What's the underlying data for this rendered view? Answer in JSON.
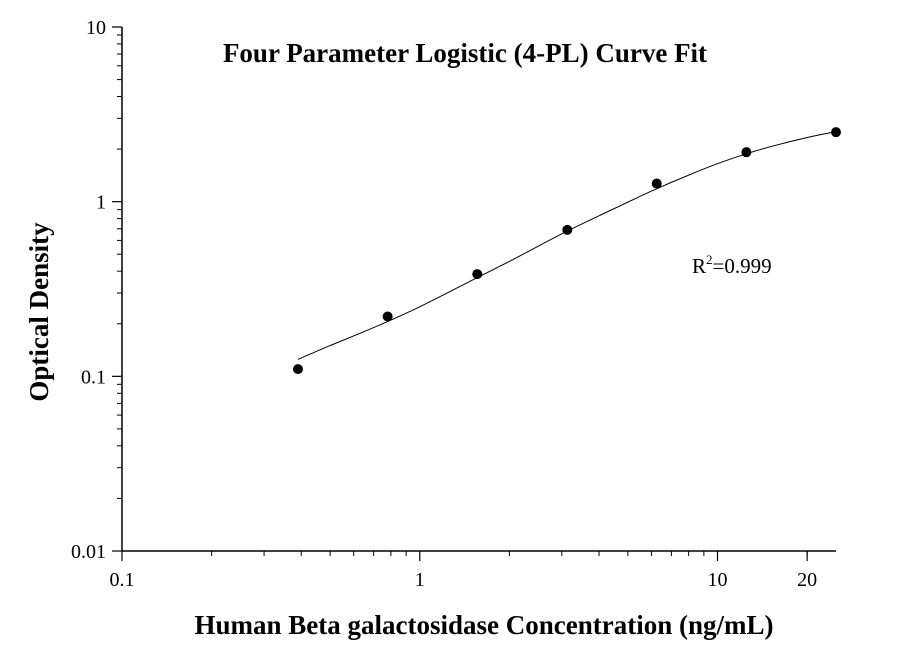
{
  "chart_data": {
    "type": "scatter",
    "title": "Four Parameter Logistic (4-PL) Curve Fit",
    "xlabel": "Human Beta galactosidase Concentration (ng/mL)",
    "ylabel": "Optical Density",
    "x_scale": "log",
    "y_scale": "log",
    "xlim": [
      0.1,
      25
    ],
    "ylim": [
      0.01,
      10
    ],
    "x_ticks": [
      {
        "value": 0.1,
        "label": "0.1"
      },
      {
        "value": 1,
        "label": "1"
      },
      {
        "value": 10,
        "label": "10"
      },
      {
        "value": 20,
        "label": "20"
      }
    ],
    "y_ticks": [
      {
        "value": 0.01,
        "label": "0.01"
      },
      {
        "value": 0.1,
        "label": "0.1"
      },
      {
        "value": 1,
        "label": "1"
      },
      {
        "value": 10,
        "label": "10"
      }
    ],
    "series": [
      {
        "x": [
          0.39,
          0.78,
          1.56,
          3.13,
          6.25,
          12.5,
          25
        ],
        "y": [
          0.11,
          0.22,
          0.385,
          0.69,
          1.27,
          1.92,
          2.5
        ]
      }
    ],
    "curve": {
      "model": "4-PL",
      "x": [
        0.39,
        0.5,
        0.7,
        1,
        1.5,
        2,
        3,
        4,
        6,
        8,
        10,
        12.5,
        15,
        20,
        25
      ],
      "y": [
        0.125,
        0.15,
        0.19,
        0.25,
        0.355,
        0.455,
        0.655,
        0.83,
        1.15,
        1.42,
        1.65,
        1.88,
        2.06,
        2.33,
        2.52
      ]
    },
    "annotation": {
      "base": "R",
      "superscript": "2",
      "rest": "=0.999"
    },
    "grid": false,
    "legend": "none",
    "colors": {
      "marker": "#000000",
      "line": "#000000",
      "axis": "#000000"
    }
  }
}
